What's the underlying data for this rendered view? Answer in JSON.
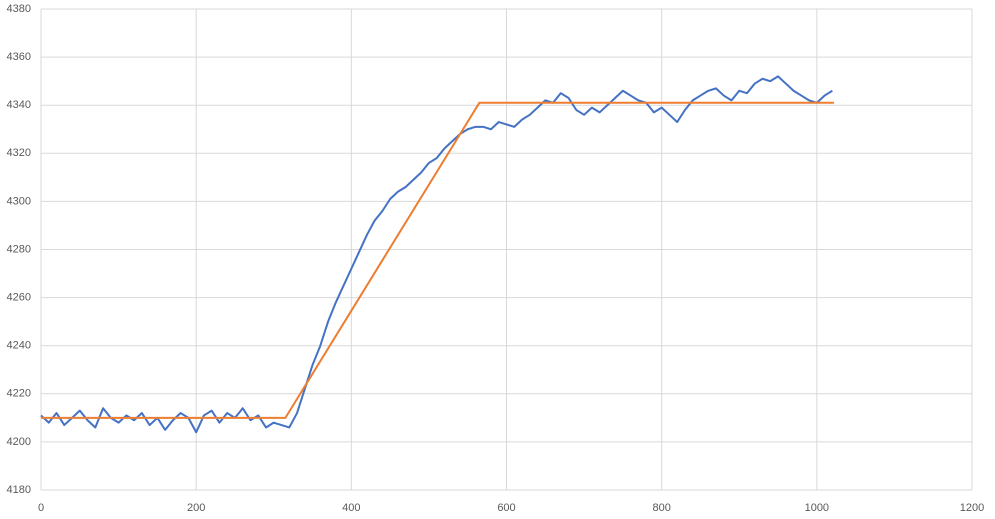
{
  "chart_data": {
    "type": "line",
    "xlim": [
      0,
      1200
    ],
    "xticks": [
      0,
      200,
      400,
      600,
      800,
      1000,
      1200
    ],
    "ylim": [
      4180,
      4380
    ],
    "yticks": [
      4180,
      4200,
      4220,
      4240,
      4260,
      4280,
      4300,
      4320,
      4340,
      4360,
      4380
    ],
    "grid": true,
    "series": [
      {
        "color": "#4472c4",
        "x": [
          0,
          10,
          20,
          30,
          40,
          50,
          60,
          70,
          80,
          90,
          100,
          110,
          120,
          130,
          140,
          150,
          160,
          170,
          180,
          190,
          200,
          210,
          220,
          230,
          240,
          250,
          260,
          270,
          280,
          290,
          300,
          310,
          320,
          330,
          340,
          350,
          360,
          370,
          380,
          390,
          400,
          410,
          420,
          430,
          440,
          450,
          460,
          470,
          480,
          490,
          500,
          510,
          520,
          530,
          540,
          550,
          560,
          570,
          580,
          590,
          600,
          610,
          620,
          630,
          640,
          650,
          660,
          670,
          680,
          690,
          700,
          710,
          720,
          730,
          740,
          750,
          760,
          770,
          780,
          790,
          800,
          810,
          820,
          830,
          840,
          850,
          860,
          870,
          880,
          890,
          900,
          910,
          920,
          930,
          940,
          950,
          960,
          970,
          980,
          990,
          1000,
          1010,
          1020
        ],
        "values": [
          4211,
          4208,
          4212,
          4207,
          4210,
          4213,
          4209,
          4206,
          4214,
          4210,
          4208,
          4211,
          4209,
          4212,
          4207,
          4210,
          4205,
          4209,
          4212,
          4210,
          4204,
          4211,
          4213,
          4208,
          4212,
          4210,
          4214,
          4209,
          4211,
          4206,
          4208,
          4207,
          4206,
          4212,
          4222,
          4232,
          4240,
          4250,
          4258,
          4265,
          4272,
          4279,
          4286,
          4292,
          4296,
          4301,
          4304,
          4306,
          4309,
          4312,
          4316,
          4318,
          4322,
          4325,
          4328,
          4330,
          4331,
          4331,
          4330,
          4333,
          4332,
          4331,
          4334,
          4336,
          4339,
          4342,
          4341,
          4345,
          4343,
          4338,
          4336,
          4339,
          4337,
          4340,
          4343,
          4346,
          4344,
          4342,
          4341,
          4337,
          4339,
          4336,
          4333,
          4338,
          4342,
          4344,
          4346,
          4347,
          4344,
          4342,
          4346,
          4345,
          4349,
          4351,
          4350,
          4352,
          4349,
          4346,
          4344,
          4342,
          4341,
          4344,
          4346
        ]
      },
      {
        "color": "#ed7d31",
        "x": [
          0,
          315,
          565,
          1022
        ],
        "values": [
          4210,
          4210,
          4341,
          4341
        ]
      }
    ]
  }
}
